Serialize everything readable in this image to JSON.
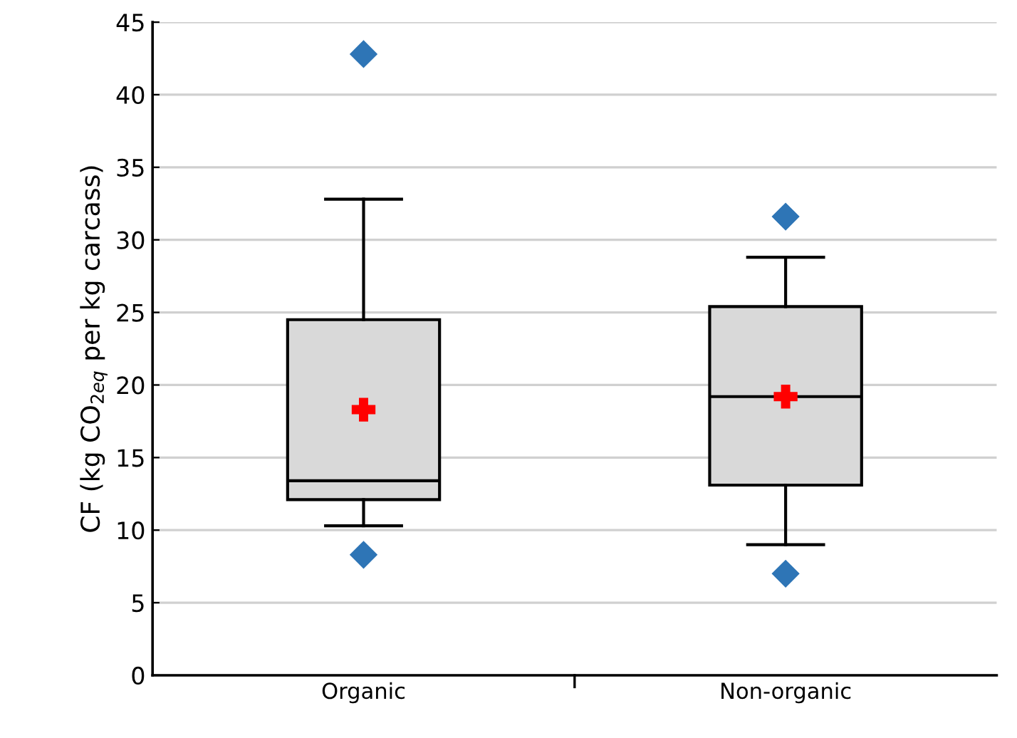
{
  "chart_data": {
    "type": "box",
    "ylabel": "CF (kg CO$_{2eq}$ per kg carcass)",
    "categories": [
      "Organic",
      "Non-organic"
    ],
    "boxes": [
      {
        "low": 10.3,
        "q1": 12.1,
        "median": 13.4,
        "q3": 24.5,
        "high": 32.8,
        "mean": 18.3,
        "outliers": [
          42.8,
          8.3
        ]
      },
      {
        "low": 9.0,
        "q1": 13.1,
        "median": 19.2,
        "q3": 25.4,
        "high": 28.8,
        "mean": 19.2,
        "outliers": [
          31.6,
          7.0
        ]
      }
    ],
    "color": "#d9d9d9",
    "ylim": [
      0,
      45
    ],
    "yticks": [
      0,
      5,
      10,
      15,
      20,
      25,
      30,
      35,
      40,
      45
    ],
    "grid": "y"
  }
}
